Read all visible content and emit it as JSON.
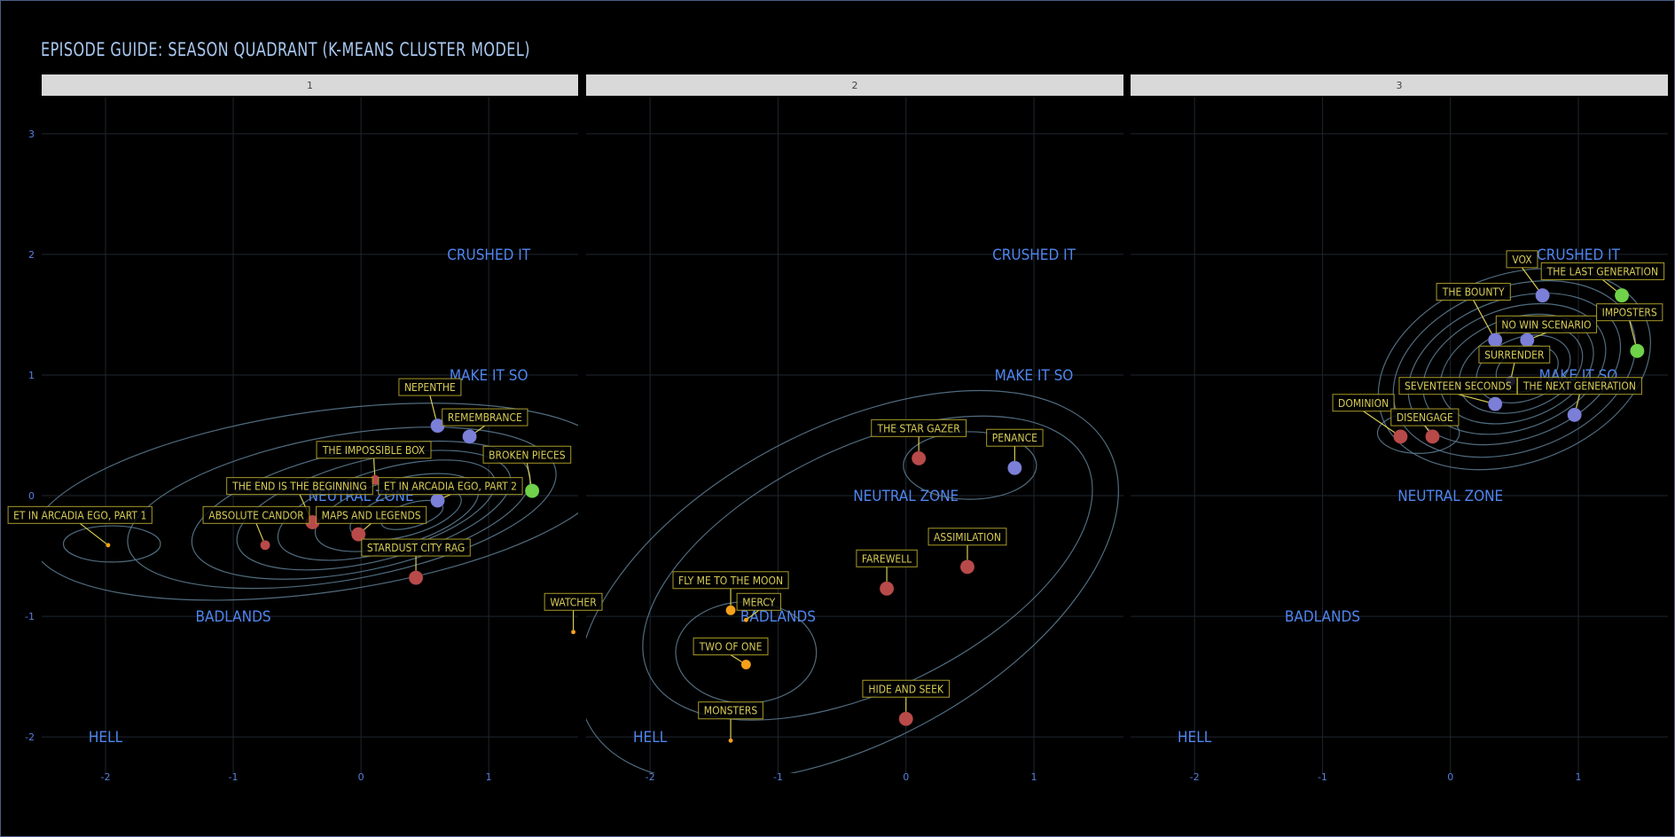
{
  "title": "EPISODE GUIDE: SEASON QUADRANT (K-MEANS CLUSTER MODEL)",
  "colors": {
    "background": "#000000",
    "strip": "#d9d9d9",
    "grid": "#1f2631",
    "contour": "#5e7f95",
    "zone_label": "#4f86f0",
    "tick_label": "#5a7fe0",
    "label_text": "#d8cc55",
    "label_border": "#a89a28",
    "cluster_red": "#b94a4a",
    "cluster_blue": "#7b7fd8",
    "cluster_green": "#6fd24a",
    "cluster_orange": "#f5a11a"
  },
  "chart_data": {
    "type": "scatter",
    "facet_by": "season",
    "xlim": [
      -2.5,
      1.7
    ],
    "ylim": [
      -2.3,
      3.3
    ],
    "x_ticks": [
      -2,
      -1,
      0,
      1
    ],
    "y_ticks": [
      -2,
      -1,
      0,
      1,
      2,
      3
    ],
    "grid": true,
    "zones": [
      {
        "label": "CRUSHED IT",
        "x": 1.0,
        "y": 2.0
      },
      {
        "label": "MAKE IT SO",
        "x": 1.0,
        "y": 1.0
      },
      {
        "label": "NEUTRAL ZONE",
        "x": 0.0,
        "y": 0.0
      },
      {
        "label": "BADLANDS",
        "x": -1.0,
        "y": -1.0
      },
      {
        "label": "HELL",
        "x": -2.0,
        "y": -2.0
      }
    ],
    "facets": [
      {
        "season": "1",
        "episodes": [
          {
            "name": "ET IN ARCADIA EGO, PART 1",
            "x": -1.98,
            "y": -0.41,
            "cluster": "orange",
            "size": 1,
            "lx": -2.2,
            "ly": -0.16
          },
          {
            "name": "NEPENTHE",
            "x": 0.6,
            "y": 0.58,
            "cluster": "blue",
            "size": 3,
            "lx": 0.54,
            "ly": 0.9
          },
          {
            "name": "REMEMBRANCE",
            "x": 0.85,
            "y": 0.49,
            "cluster": "blue",
            "size": 3,
            "lx": 0.97,
            "ly": 0.65
          },
          {
            "name": "BROKEN PIECES",
            "x": 1.34,
            "y": 0.04,
            "cluster": "green",
            "size": 3,
            "lx": 1.3,
            "ly": 0.34
          },
          {
            "name": "THE IMPOSSIBLE BOX",
            "x": 0.11,
            "y": 0.13,
            "cluster": "red",
            "size": 2,
            "lx": 0.1,
            "ly": 0.38
          },
          {
            "name": "THE END IS THE BEGINNING",
            "x": -0.38,
            "y": -0.22,
            "cluster": "red",
            "size": 3,
            "lx": -0.48,
            "ly": 0.08
          },
          {
            "name": "ET IN ARCADIA EGO, PART 2",
            "x": 0.6,
            "y": -0.04,
            "cluster": "blue",
            "size": 3,
            "lx": 0.7,
            "ly": 0.08
          },
          {
            "name": "ABSOLUTE CANDOR",
            "x": -0.75,
            "y": -0.41,
            "cluster": "red",
            "size": 2,
            "lx": -0.82,
            "ly": -0.16
          },
          {
            "name": "MAPS AND LEGENDS",
            "x": -0.02,
            "y": -0.32,
            "cluster": "red",
            "size": 3,
            "lx": 0.08,
            "ly": -0.16
          },
          {
            "name": "STARDUST CITY RAG",
            "x": 0.43,
            "y": -0.68,
            "cluster": "red",
            "size": 3,
            "lx": 0.43,
            "ly": -0.43
          }
        ],
        "contours": [
          {
            "cx": -0.3,
            "cy": -0.05,
            "rx": 2.3,
            "ry": 0.75,
            "rot": 8
          },
          {
            "cx": -0.15,
            "cy": -0.1,
            "rx": 1.7,
            "ry": 0.6,
            "rot": 10
          },
          {
            "cx": 0.0,
            "cy": -0.12,
            "rx": 1.35,
            "ry": 0.5,
            "rot": 12
          },
          {
            "cx": 0.1,
            "cy": -0.12,
            "rx": 1.1,
            "ry": 0.42,
            "rot": 14
          },
          {
            "cx": 0.2,
            "cy": -0.12,
            "rx": 0.88,
            "ry": 0.34,
            "rot": 16
          },
          {
            "cx": 0.28,
            "cy": -0.14,
            "rx": 0.66,
            "ry": 0.27,
            "rot": 16
          },
          {
            "cx": 0.35,
            "cy": -0.15,
            "rx": 0.45,
            "ry": 0.18,
            "rot": 16
          },
          {
            "cx": 0.4,
            "cy": -0.16,
            "rx": 0.25,
            "ry": 0.1,
            "rot": 16
          },
          {
            "cx": -1.95,
            "cy": -0.4,
            "rx": 0.38,
            "ry": 0.15,
            "rot": 0
          }
        ]
      },
      {
        "season": "2",
        "episodes": [
          {
            "name": "THE STAR GAZER",
            "x": 0.1,
            "y": 0.31,
            "cluster": "red",
            "size": 3,
            "lx": 0.1,
            "ly": 0.56
          },
          {
            "name": "PENANCE",
            "x": 0.85,
            "y": 0.23,
            "cluster": "blue",
            "size": 3,
            "lx": 0.85,
            "ly": 0.48
          },
          {
            "name": "ASSIMILATION",
            "x": 0.48,
            "y": -0.59,
            "cluster": "red",
            "size": 3,
            "lx": 0.48,
            "ly": -0.34
          },
          {
            "name": "FAREWELL",
            "x": -0.15,
            "y": -0.77,
            "cluster": "red",
            "size": 3,
            "lx": -0.15,
            "ly": -0.52
          },
          {
            "name": "FLY ME TO THE MOON",
            "x": -1.37,
            "y": -0.95,
            "cluster": "orange",
            "size": 2,
            "lx": -1.37,
            "ly": -0.7
          },
          {
            "name": "WATCHER",
            "x": -2.6,
            "y": -1.13,
            "cluster": "orange",
            "size": 1,
            "lx": -2.6,
            "ly": -0.88
          },
          {
            "name": "MERCY",
            "x": -1.25,
            "y": -1.03,
            "cluster": "orange",
            "size": 1,
            "lx": -1.15,
            "ly": -0.88
          },
          {
            "name": "TWO OF ONE",
            "x": -1.25,
            "y": -1.4,
            "cluster": "orange",
            "size": 2,
            "lx": -1.37,
            "ly": -1.25
          },
          {
            "name": "HIDE AND SEEK",
            "x": 0.0,
            "y": -1.85,
            "cluster": "red",
            "size": 3,
            "lx": 0.0,
            "ly": -1.6
          },
          {
            "name": "MONSTERS",
            "x": -1.37,
            "y": -2.03,
            "cluster": "orange",
            "size": 1,
            "lx": -1.37,
            "ly": -1.78
          }
        ],
        "contours": [
          {
            "cx": -0.45,
            "cy": -0.75,
            "rx": 2.3,
            "ry": 1.3,
            "rot": 28
          },
          {
            "cx": -0.3,
            "cy": -0.6,
            "rx": 1.9,
            "ry": 1.0,
            "rot": 26
          },
          {
            "cx": -1.25,
            "cy": -1.3,
            "rx": 0.55,
            "ry": 0.42,
            "rot": 0
          },
          {
            "cx": 0.5,
            "cy": 0.25,
            "rx": 0.52,
            "ry": 0.28,
            "rot": 0
          }
        ]
      },
      {
        "season": "3",
        "episodes": [
          {
            "name": "VOX",
            "x": 0.72,
            "y": 1.66,
            "cluster": "blue",
            "size": 3,
            "lx": 0.56,
            "ly": 1.96
          },
          {
            "name": "THE LAST GENERATION",
            "x": 1.34,
            "y": 1.66,
            "cluster": "green",
            "size": 3,
            "lx": 1.19,
            "ly": 1.86
          },
          {
            "name": "THE BOUNTY",
            "x": 0.35,
            "y": 1.29,
            "cluster": "blue",
            "size": 3,
            "lx": 0.18,
            "ly": 1.69
          },
          {
            "name": "IMPOSTERS",
            "x": 1.46,
            "y": 1.2,
            "cluster": "green",
            "size": 3,
            "lx": 1.4,
            "ly": 1.52
          },
          {
            "name": "NO WIN SCENARIO",
            "x": 0.6,
            "y": 1.29,
            "cluster": "blue",
            "size": 3,
            "lx": 0.75,
            "ly": 1.42
          },
          {
            "name": "SURRENDER",
            "x": 0.47,
            "y": 0.95,
            "cluster": "blue",
            "size": 2,
            "lx": 0.5,
            "ly": 1.17
          },
          {
            "name": "SEVENTEEN SECONDS",
            "x": 0.35,
            "y": 0.76,
            "cluster": "blue",
            "size": 3,
            "lx": 0.06,
            "ly": 0.91
          },
          {
            "name": "THE NEXT GENERATION",
            "x": 0.97,
            "y": 0.67,
            "cluster": "blue",
            "size": 3,
            "lx": 1.01,
            "ly": 0.91
          },
          {
            "name": "DOMINION",
            "x": -0.39,
            "y": 0.49,
            "cluster": "red",
            "size": 3,
            "lx": -0.68,
            "ly": 0.77
          },
          {
            "name": "DISENGAGE",
            "x": -0.14,
            "y": 0.49,
            "cluster": "red",
            "size": 3,
            "lx": -0.2,
            "ly": 0.65
          }
        ],
        "contours": [
          {
            "cx": 0.5,
            "cy": 1.05,
            "rx": 1.1,
            "ry": 0.78,
            "rot": 20
          },
          {
            "cx": 0.5,
            "cy": 1.05,
            "rx": 0.98,
            "ry": 0.68,
            "rot": 20
          },
          {
            "cx": 0.5,
            "cy": 1.05,
            "rx": 0.86,
            "ry": 0.58,
            "rot": 20
          },
          {
            "cx": 0.5,
            "cy": 1.05,
            "rx": 0.74,
            "ry": 0.5,
            "rot": 20
          },
          {
            "cx": 0.52,
            "cy": 1.05,
            "rx": 0.62,
            "ry": 0.42,
            "rot": 20
          },
          {
            "cx": 0.55,
            "cy": 1.05,
            "rx": 0.5,
            "ry": 0.34,
            "rot": 20
          },
          {
            "cx": 0.57,
            "cy": 1.05,
            "rx": 0.38,
            "ry": 0.26,
            "rot": 20
          },
          {
            "cx": 0.6,
            "cy": 1.05,
            "rx": 0.25,
            "ry": 0.18,
            "rot": 20
          },
          {
            "cx": -0.25,
            "cy": 0.52,
            "rx": 0.32,
            "ry": 0.17,
            "rot": 0
          }
        ]
      }
    ]
  }
}
